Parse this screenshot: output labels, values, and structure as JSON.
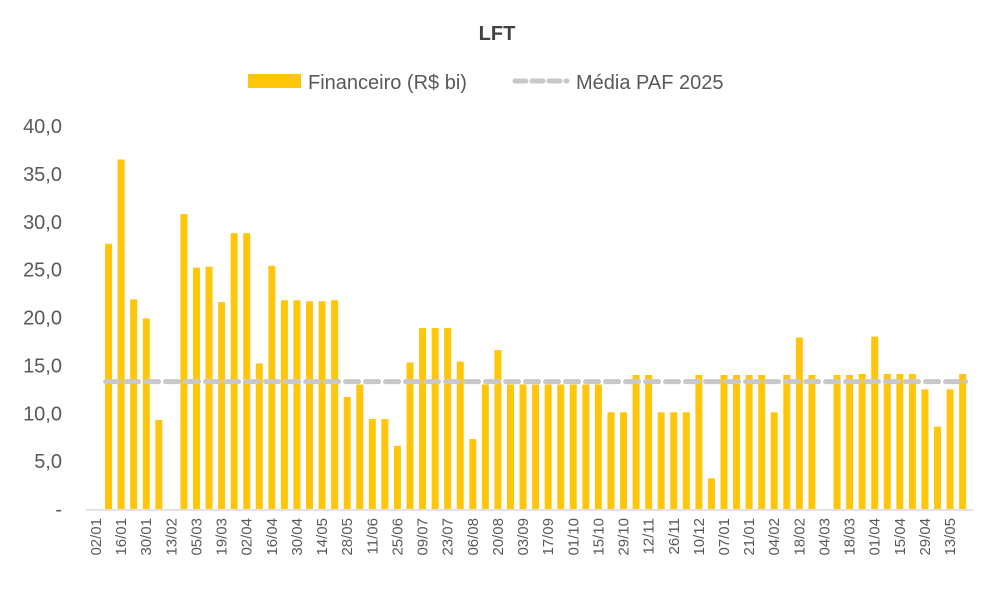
{
  "chart_data": {
    "type": "bar",
    "title": "LFT",
    "xlabel": "",
    "ylabel": "",
    "ylim": [
      0,
      40
    ],
    "yticks": [
      0,
      5,
      10,
      15,
      20,
      25,
      30,
      35,
      40
    ],
    "ytick_labels": [
      "-",
      "5,0",
      "10,0",
      "15,0",
      "20,0",
      "25,0",
      "30,0",
      "35,0",
      "40,0"
    ],
    "grid": false,
    "legend_position": "top",
    "categories": [
      "02/01",
      "",
      "16/01",
      "",
      "30/01",
      "",
      "13/02",
      "",
      "05/03",
      "",
      "19/03",
      "",
      "02/04",
      "",
      "16/04",
      "",
      "30/04",
      "",
      "14/05",
      "",
      "28/05",
      "",
      "11/06",
      "",
      "25/06",
      "",
      "09/07",
      "",
      "23/07",
      "",
      "06/08",
      "",
      "20/08",
      "",
      "03/09",
      "",
      "17/09",
      "",
      "01/10",
      "",
      "15/10",
      "",
      "29/10",
      "",
      "12/11",
      "",
      "26/11",
      "",
      "10/12",
      "",
      "07/01",
      "",
      "21/01",
      "",
      "04/02",
      "",
      "18/02",
      "",
      "04/03",
      "",
      "18/03",
      "",
      "01/04",
      "",
      "15/04",
      "",
      "29/04",
      "",
      "13/05",
      ""
    ],
    "series": [
      {
        "name": "Financeiro (R$ bi)",
        "type": "bar",
        "color": "#FFC60B",
        "values": [
          null,
          27.7,
          36.5,
          21.9,
          19.9,
          9.3,
          null,
          30.8,
          25.2,
          25.3,
          21.6,
          28.8,
          28.8,
          15.2,
          25.4,
          21.8,
          21.8,
          21.7,
          21.7,
          21.8,
          11.7,
          13.0,
          9.4,
          9.4,
          6.6,
          15.3,
          18.9,
          18.9,
          18.9,
          15.4,
          7.3,
          13.0,
          16.6,
          13.0,
          13.0,
          13.0,
          13.0,
          13.0,
          13.0,
          13.0,
          13.0,
          10.1,
          10.1,
          14.0,
          14.0,
          10.1,
          10.1,
          10.1,
          14.0,
          3.2,
          14.0,
          14.0,
          14.0,
          14.0,
          10.1,
          14.0,
          17.9,
          14.0,
          null,
          14.0,
          14.0,
          14.1,
          18.0,
          14.1,
          14.1,
          14.1,
          12.5,
          8.6,
          12.5,
          14.1
        ]
      },
      {
        "name": "Média PAF 2025",
        "type": "line-dashed",
        "color": "#C8C8C8",
        "value": 13.3
      }
    ]
  }
}
